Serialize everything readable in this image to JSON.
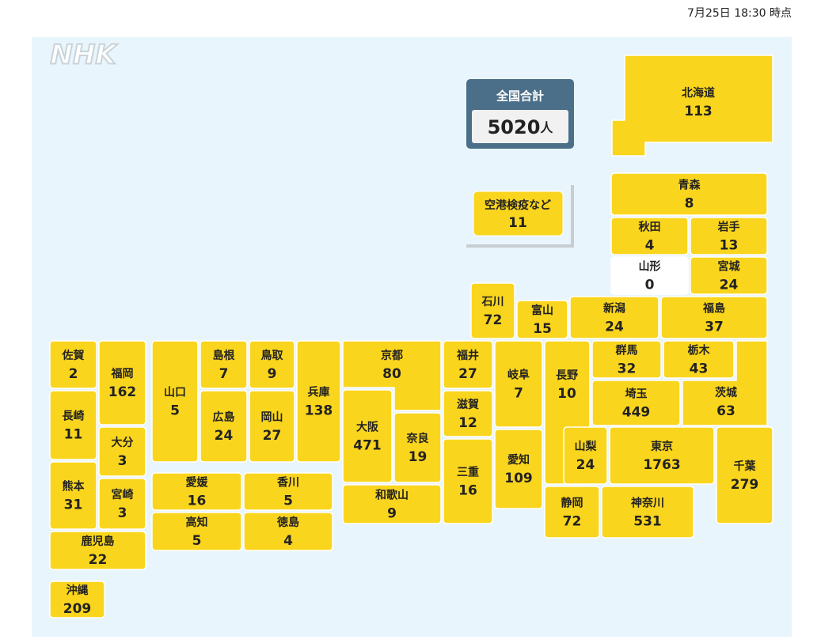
{
  "timestamp": "7月25日 18:30 時点",
  "logo": "NHK",
  "total": {
    "label": "全国合計",
    "value": 5020,
    "unit": "人"
  },
  "airport": {
    "name": "空港検疫など",
    "value": 11
  },
  "prefectures": [
    {
      "name": "北海道",
      "value": 113
    },
    {
      "name": "青森",
      "value": 8
    },
    {
      "name": "秋田",
      "value": 4
    },
    {
      "name": "岩手",
      "value": 13
    },
    {
      "name": "山形",
      "value": 0
    },
    {
      "name": "宮城",
      "value": 24
    },
    {
      "name": "石川",
      "value": 72
    },
    {
      "name": "富山",
      "value": 15
    },
    {
      "name": "新潟",
      "value": 24
    },
    {
      "name": "福島",
      "value": 37
    },
    {
      "name": "福井",
      "value": 27
    },
    {
      "name": "岐阜",
      "value": 7
    },
    {
      "name": "長野",
      "value": 10
    },
    {
      "name": "群馬",
      "value": 32
    },
    {
      "name": "栃木",
      "value": 43
    },
    {
      "name": "茨城",
      "value": 63
    },
    {
      "name": "埼玉",
      "value": 449
    },
    {
      "name": "山梨",
      "value": 24
    },
    {
      "name": "東京",
      "value": 1763
    },
    {
      "name": "千葉",
      "value": 279
    },
    {
      "name": "静岡",
      "value": 72
    },
    {
      "name": "神奈川",
      "value": 531
    },
    {
      "name": "愛知",
      "value": 109
    },
    {
      "name": "三重",
      "value": 16
    },
    {
      "name": "滋賀",
      "value": 12
    },
    {
      "name": "京都",
      "value": 80
    },
    {
      "name": "大阪",
      "value": 471
    },
    {
      "name": "奈良",
      "value": 19
    },
    {
      "name": "和歌山",
      "value": 9
    },
    {
      "name": "兵庫",
      "value": 138
    },
    {
      "name": "鳥取",
      "value": 9
    },
    {
      "name": "岡山",
      "value": 27
    },
    {
      "name": "島根",
      "value": 7
    },
    {
      "name": "広島",
      "value": 24
    },
    {
      "name": "山口",
      "value": 5
    },
    {
      "name": "愛媛",
      "value": 16
    },
    {
      "name": "香川",
      "value": 5
    },
    {
      "name": "高知",
      "value": 5
    },
    {
      "name": "徳島",
      "value": 4
    },
    {
      "name": "佐賀",
      "value": 2
    },
    {
      "name": "福岡",
      "value": 162
    },
    {
      "name": "長崎",
      "value": 11
    },
    {
      "name": "大分",
      "value": 3
    },
    {
      "name": "熊本",
      "value": 31
    },
    {
      "name": "宮崎",
      "value": 3
    },
    {
      "name": "鹿児島",
      "value": 22
    },
    {
      "name": "沖縄",
      "value": 209
    }
  ]
}
